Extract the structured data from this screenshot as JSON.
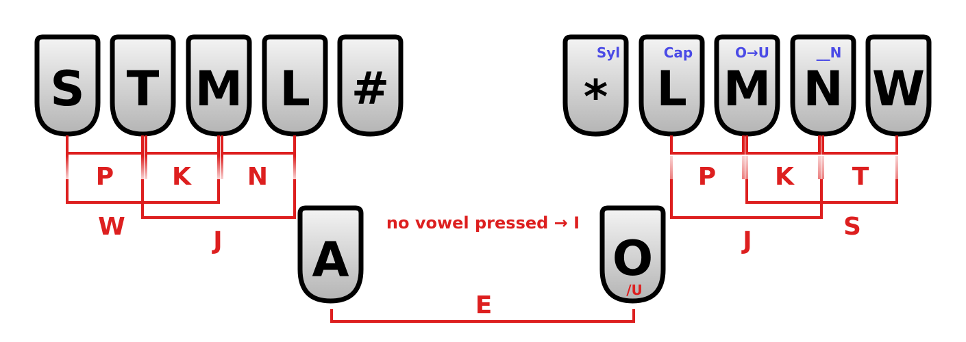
{
  "left_keys": [
    "S",
    "T",
    "M",
    "L",
    "#"
  ],
  "right_keys": [
    "*",
    "L",
    "M",
    "N",
    "W"
  ],
  "right_notes": [
    "Syl",
    "Cap",
    "O→U",
    "__N"
  ],
  "vowel_keys": {
    "left": "A",
    "right": "O",
    "right_note": "/U"
  },
  "left_combos": [
    "P",
    "K",
    "N",
    "W",
    "J"
  ],
  "right_combos": [
    "P",
    "K",
    "T",
    "J",
    "S"
  ],
  "vowel_combo": "E",
  "no_vowel_note": "no vowel pressed → I",
  "colors": {
    "combo": "#dd1f1f",
    "note": "#4a4ae6",
    "key_top": "#ffffff",
    "key_bottom": "#b8b8b8"
  }
}
